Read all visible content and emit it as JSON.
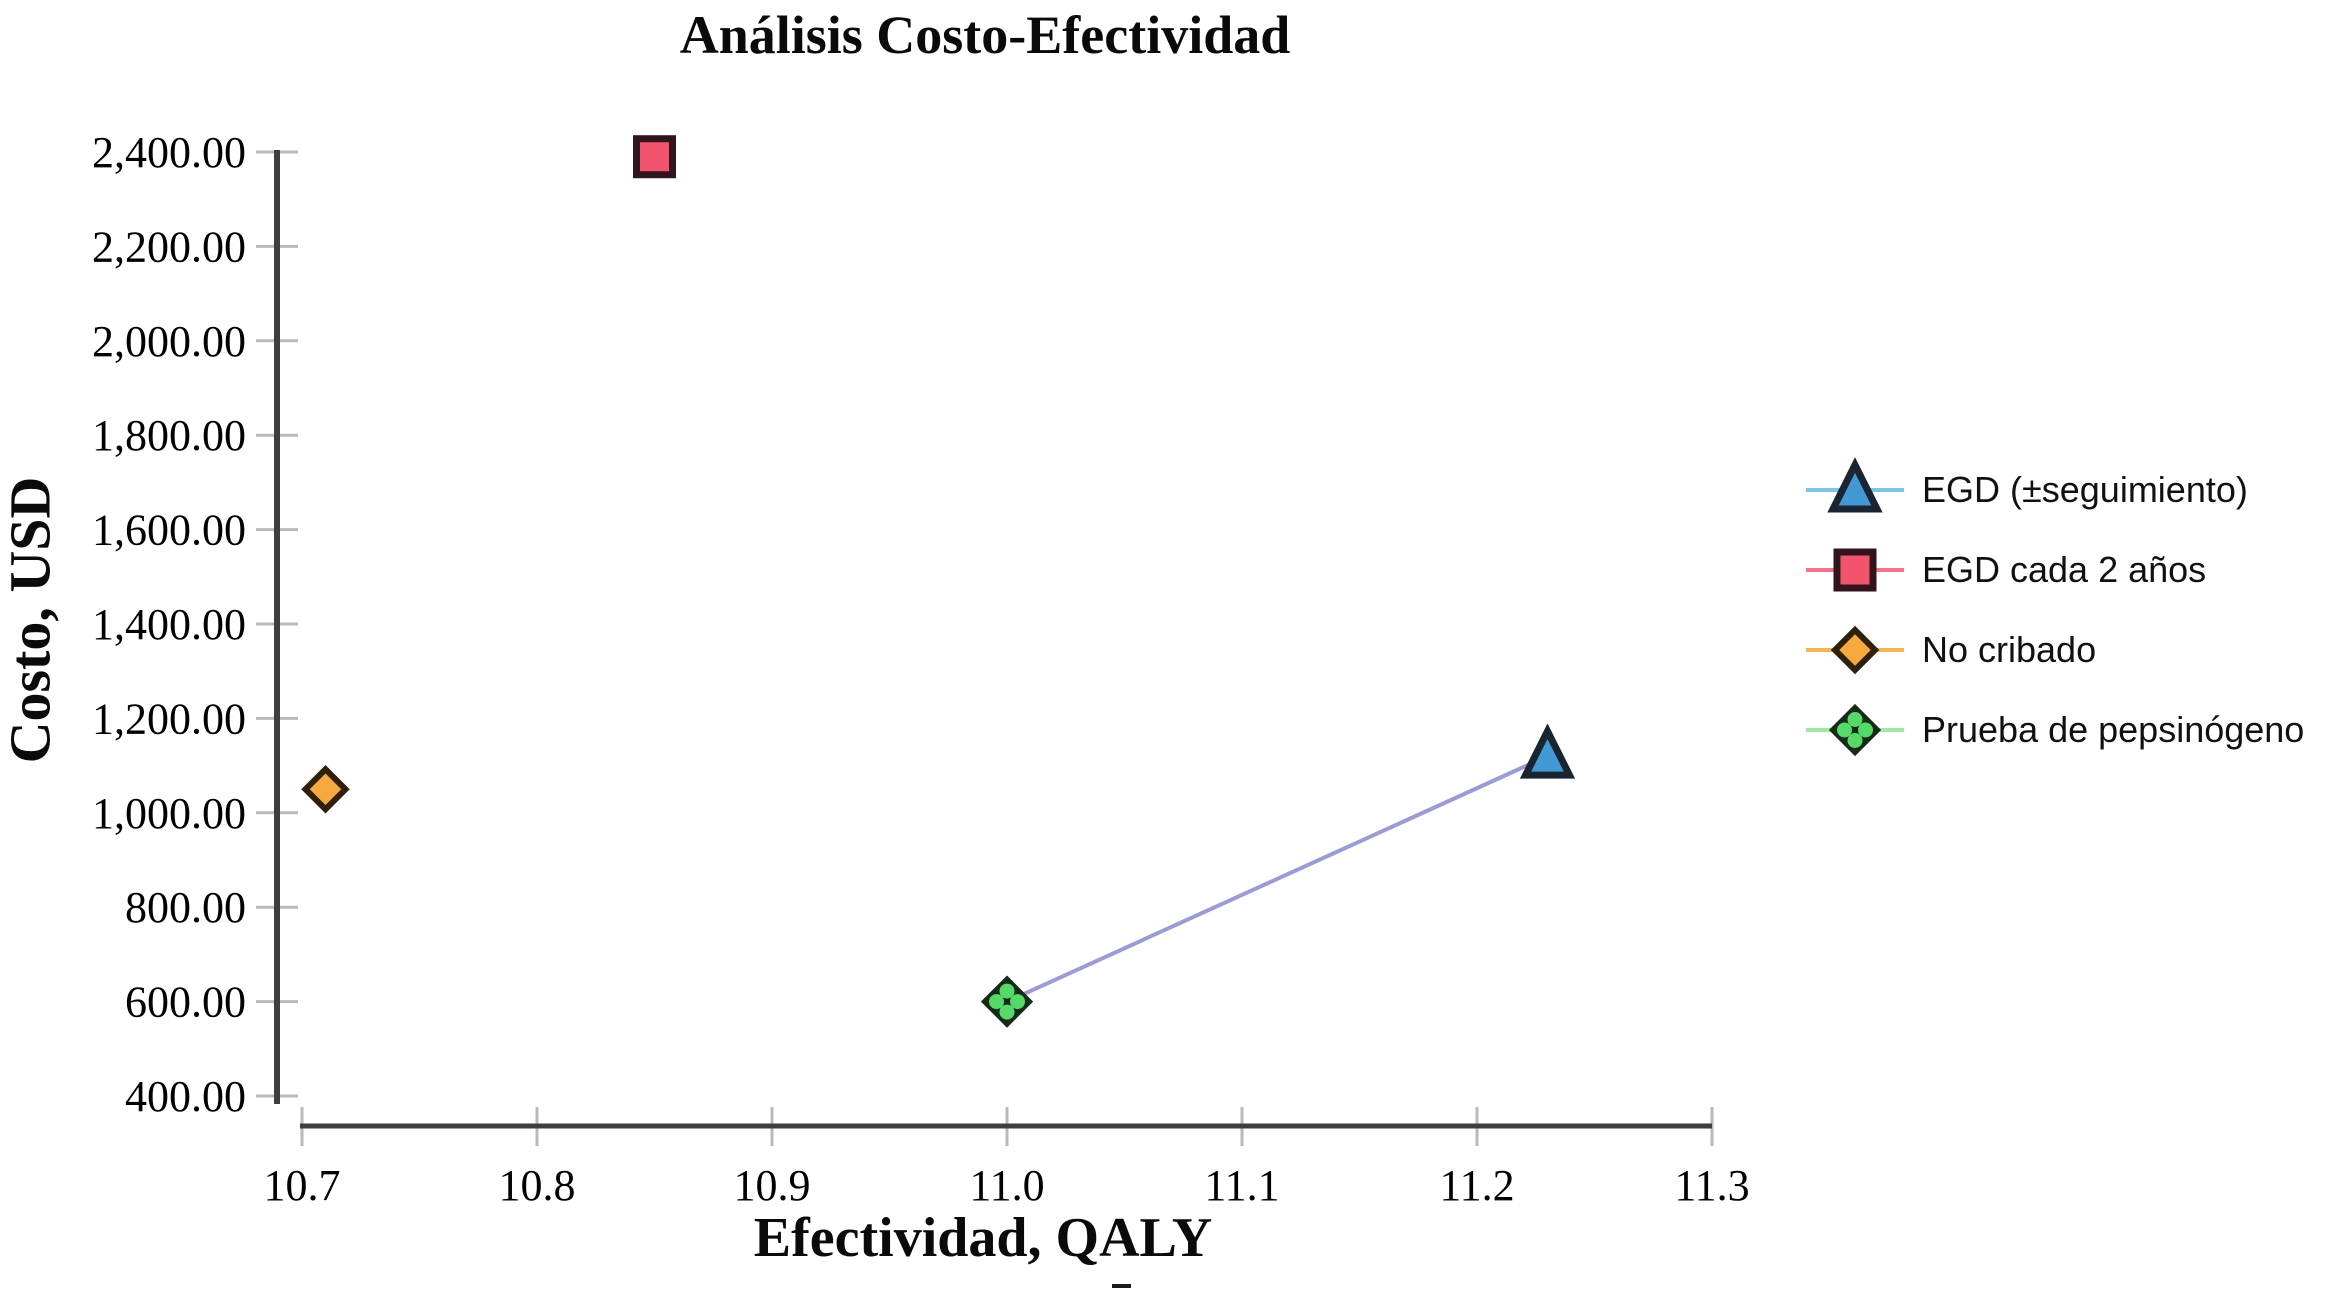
{
  "page": {
    "background": "#ffffff"
  },
  "chart_data": {
    "type": "scatter",
    "title": "Análisis Costo-Efectividad",
    "xlabel": "Efectividad, QALY",
    "ylabel": "Costo, USD",
    "xlim": [
      10.7,
      11.3
    ],
    "ylim": [
      400,
      2400
    ],
    "x_ticks": [
      10.7,
      10.8,
      10.9,
      11.0,
      11.1,
      11.2,
      11.3
    ],
    "x_tick_labels": [
      "10.7",
      "10.8",
      "10.9",
      "11.0",
      "11.1",
      "11.2",
      "11.3"
    ],
    "y_ticks": [
      400,
      600,
      800,
      1000,
      1200,
      1400,
      1600,
      1800,
      2000,
      2200,
      2400
    ],
    "y_tick_labels": [
      "400.00",
      "600.00",
      "800.00",
      "1,000.00",
      "1,200.00",
      "1,400.00",
      "1,600.00",
      "1,800.00",
      "2,000.00",
      "2,200.00",
      "2,400.00"
    ],
    "grid": false,
    "legend_position": "right",
    "axis": {
      "color": "#3e3e3e",
      "tick_color": "#b9b9b9"
    },
    "series": [
      {
        "name": "EGD (±seguimiento)",
        "marker": "triangle",
        "fill": "#4399d3",
        "edge": "#1b2531",
        "legend_line_color": "#7fc2ea",
        "points": [
          {
            "x": 11.23,
            "y": 1120
          }
        ]
      },
      {
        "name": "EGD cada 2 años",
        "marker": "square",
        "fill": "#f2546e",
        "edge": "#33131c",
        "legend_line_color": "#f4738b",
        "points": [
          {
            "x": 10.85,
            "y": 2390
          }
        ]
      },
      {
        "name": "No cribado",
        "marker": "diamond",
        "fill": "#f6a93e",
        "edge": "#2e2009",
        "legend_line_color": "#f2b558",
        "points": [
          {
            "x": 10.71,
            "y": 1050
          }
        ]
      },
      {
        "name": "Prueba de pepsinógeno",
        "marker": "diamond4",
        "fill": "#56d968",
        "edge": "#152a18",
        "legend_line_color": "#9fe9a4",
        "points": [
          {
            "x": 11.0,
            "y": 600
          }
        ]
      }
    ],
    "connector": {
      "from": [
        11.0,
        600
      ],
      "to": [
        11.23,
        1120
      ],
      "color": "#9b9bd6"
    }
  }
}
